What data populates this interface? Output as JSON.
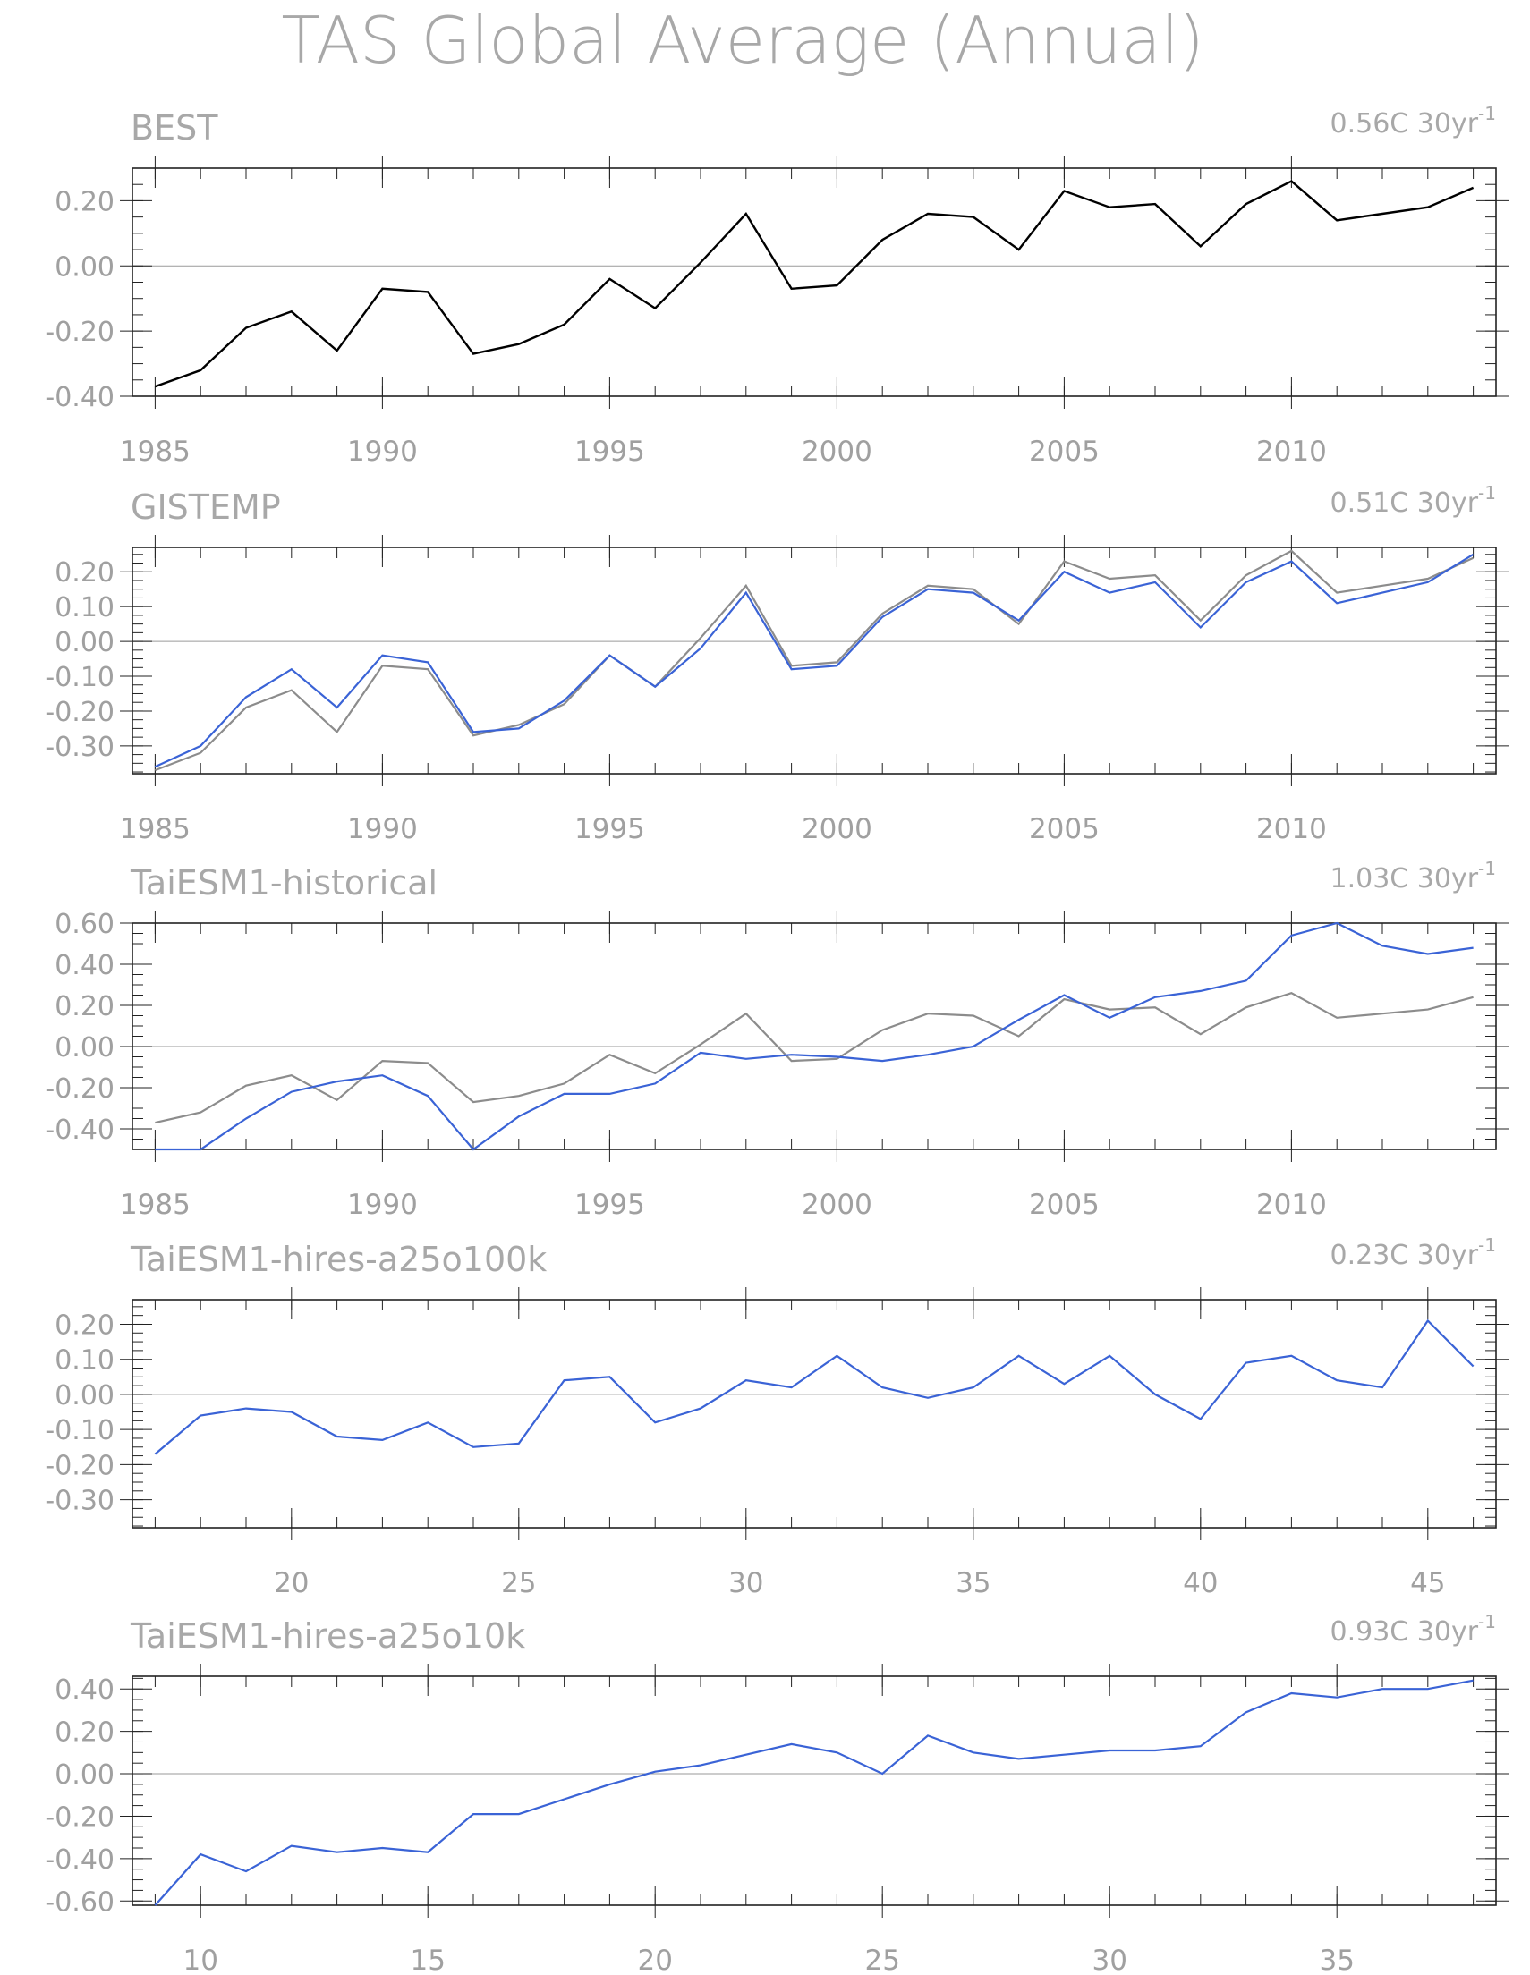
{
  "title": "TAS Global Average (Annual)",
  "colors": {
    "observed": "#000000",
    "reference": "#8c8c8c",
    "model": "#3a63d6",
    "frame": "#222222",
    "zero_line": "#9a9a9a",
    "text": "#a8a8a8"
  },
  "chart_data": [
    {
      "type": "line",
      "title": "BEST",
      "trend": {
        "value": "0.56C",
        "unit": "30yr",
        "exponent": "-1"
      },
      "xlim": [
        1984.5,
        2014.5
      ],
      "ylim": [
        -0.4,
        0.3
      ],
      "x_ticks": [
        1985,
        1990,
        1995,
        2000,
        2005,
        2010
      ],
      "y_ticks": [
        -0.4,
        -0.2,
        0.0,
        0.2
      ],
      "y_tick_labels": [
        "-0.40",
        "-0.20",
        "0.00",
        "0.20"
      ],
      "y_minor_step": 0.05,
      "x_minor_step": 1,
      "x": [
        1985,
        1986,
        1987,
        1988,
        1989,
        1990,
        1991,
        1992,
        1993,
        1994,
        1995,
        1996,
        1997,
        1998,
        1999,
        2000,
        2001,
        2002,
        2003,
        2004,
        2005,
        2006,
        2007,
        2008,
        2009,
        2010,
        2011,
        2012,
        2013,
        2014
      ],
      "series": [
        {
          "role": "observed",
          "values": [
            -0.37,
            -0.32,
            -0.19,
            -0.14,
            -0.26,
            -0.07,
            -0.08,
            -0.27,
            -0.24,
            -0.18,
            -0.04,
            -0.13,
            0.01,
            0.16,
            -0.07,
            -0.06,
            0.08,
            0.16,
            0.15,
            0.05,
            0.23,
            0.18,
            0.19,
            0.06,
            0.19,
            0.26,
            0.14,
            0.16,
            0.18,
            0.24
          ]
        }
      ]
    },
    {
      "type": "line",
      "title": "GISTEMP",
      "trend": {
        "value": "0.51C",
        "unit": "30yr",
        "exponent": "-1"
      },
      "xlim": [
        1984.5,
        2014.5
      ],
      "ylim": [
        -0.38,
        0.27
      ],
      "x_ticks": [
        1985,
        1990,
        1995,
        2000,
        2005,
        2010
      ],
      "y_ticks": [
        -0.3,
        -0.2,
        -0.1,
        0.0,
        0.1,
        0.2
      ],
      "y_tick_labels": [
        "-0.30",
        "-0.20",
        "-0.10",
        "0.00",
        "0.10",
        "0.20"
      ],
      "y_minor_step": 0.025,
      "x_minor_step": 1,
      "x": [
        1985,
        1986,
        1987,
        1988,
        1989,
        1990,
        1991,
        1992,
        1993,
        1994,
        1995,
        1996,
        1997,
        1998,
        1999,
        2000,
        2001,
        2002,
        2003,
        2004,
        2005,
        2006,
        2007,
        2008,
        2009,
        2010,
        2011,
        2012,
        2013,
        2014
      ],
      "series": [
        {
          "role": "reference",
          "values": [
            -0.37,
            -0.32,
            -0.19,
            -0.14,
            -0.26,
            -0.07,
            -0.08,
            -0.27,
            -0.24,
            -0.18,
            -0.04,
            -0.13,
            0.01,
            0.16,
            -0.07,
            -0.06,
            0.08,
            0.16,
            0.15,
            0.05,
            0.23,
            0.18,
            0.19,
            0.06,
            0.19,
            0.26,
            0.14,
            0.16,
            0.18,
            0.24
          ]
        },
        {
          "role": "model",
          "values": [
            -0.36,
            -0.3,
            -0.16,
            -0.08,
            -0.19,
            -0.04,
            -0.06,
            -0.26,
            -0.25,
            -0.17,
            -0.04,
            -0.13,
            -0.02,
            0.14,
            -0.08,
            -0.07,
            0.07,
            0.15,
            0.14,
            0.06,
            0.2,
            0.14,
            0.17,
            0.04,
            0.17,
            0.23,
            0.11,
            0.14,
            0.17,
            0.25
          ]
        }
      ]
    },
    {
      "type": "line",
      "title": "TaiESM1-historical",
      "trend": {
        "value": "1.03C",
        "unit": "30yr",
        "exponent": "-1"
      },
      "xlim": [
        1984.5,
        2014.5
      ],
      "ylim": [
        -0.5,
        0.6
      ],
      "x_ticks": [
        1985,
        1990,
        1995,
        2000,
        2005,
        2010
      ],
      "y_ticks": [
        -0.4,
        -0.2,
        0.0,
        0.2,
        0.4,
        0.6
      ],
      "y_tick_labels": [
        "-0.40",
        "-0.20",
        "0.00",
        "0.20",
        "0.40",
        "0.60"
      ],
      "y_minor_step": 0.05,
      "x_minor_step": 1,
      "x": [
        1985,
        1986,
        1987,
        1988,
        1989,
        1990,
        1991,
        1992,
        1993,
        1994,
        1995,
        1996,
        1997,
        1998,
        1999,
        2000,
        2001,
        2002,
        2003,
        2004,
        2005,
        2006,
        2007,
        2008,
        2009,
        2010,
        2011,
        2012,
        2013,
        2014
      ],
      "series": [
        {
          "role": "reference",
          "values": [
            -0.37,
            -0.32,
            -0.19,
            -0.14,
            -0.26,
            -0.07,
            -0.08,
            -0.27,
            -0.24,
            -0.18,
            -0.04,
            -0.13,
            0.01,
            0.16,
            -0.07,
            -0.06,
            0.08,
            0.16,
            0.15,
            0.05,
            0.23,
            0.18,
            0.19,
            0.06,
            0.19,
            0.26,
            0.14,
            0.16,
            0.18,
            0.24
          ]
        },
        {
          "role": "model",
          "values": [
            -0.5,
            -0.5,
            -0.35,
            -0.22,
            -0.17,
            -0.14,
            -0.24,
            -0.5,
            -0.34,
            -0.23,
            -0.23,
            -0.18,
            -0.03,
            -0.06,
            -0.04,
            -0.05,
            -0.07,
            -0.04,
            0.0,
            0.13,
            0.25,
            0.14,
            0.24,
            0.27,
            0.32,
            0.54,
            0.6,
            0.49,
            0.45,
            0.48
          ]
        }
      ]
    },
    {
      "type": "line",
      "title": "TaiESM1-hires-a25o100k",
      "trend": {
        "value": "0.23C",
        "unit": "30yr",
        "exponent": "-1"
      },
      "xlim": [
        16.5,
        46.5
      ],
      "ylim": [
        -0.38,
        0.27
      ],
      "x_ticks": [
        20,
        25,
        30,
        35,
        40,
        45
      ],
      "y_ticks": [
        -0.3,
        -0.2,
        -0.1,
        0.0,
        0.1,
        0.2
      ],
      "y_tick_labels": [
        "-0.30",
        "-0.20",
        "-0.10",
        "0.00",
        "0.10",
        "0.20"
      ],
      "y_minor_step": 0.025,
      "x_minor_step": 1,
      "x": [
        17,
        18,
        19,
        20,
        21,
        22,
        23,
        24,
        25,
        26,
        27,
        28,
        29,
        30,
        31,
        32,
        33,
        34,
        35,
        36,
        37,
        38,
        39,
        40,
        41,
        42,
        43,
        44,
        45,
        46
      ],
      "series": [
        {
          "role": "model",
          "values": [
            -0.17,
            -0.06,
            -0.04,
            -0.05,
            -0.12,
            -0.13,
            -0.08,
            -0.15,
            -0.14,
            0.04,
            0.05,
            -0.08,
            -0.04,
            0.04,
            0.02,
            0.11,
            0.02,
            -0.01,
            0.02,
            0.11,
            0.03,
            0.11,
            0.0,
            -0.07,
            0.09,
            0.11,
            0.04,
            0.02,
            0.21,
            0.08
          ]
        }
      ]
    },
    {
      "type": "line",
      "title": "TaiESM1-hires-a25o10k",
      "trend": {
        "value": "0.93C",
        "unit": "30yr",
        "exponent": "-1"
      },
      "xlim": [
        8.5,
        38.5
      ],
      "ylim": [
        -0.62,
        0.46
      ],
      "x_ticks": [
        10,
        15,
        20,
        25,
        30,
        35
      ],
      "y_ticks": [
        -0.6,
        -0.4,
        -0.2,
        0.0,
        0.2,
        0.4
      ],
      "y_tick_labels": [
        "-0.60",
        "-0.40",
        "-0.20",
        "0.00",
        "0.20",
        "0.40"
      ],
      "y_minor_step": 0.05,
      "x_minor_step": 1,
      "x": [
        9,
        10,
        11,
        12,
        13,
        14,
        15,
        16,
        17,
        18,
        19,
        20,
        21,
        22,
        23,
        24,
        25,
        26,
        27,
        28,
        29,
        30,
        31,
        32,
        33,
        34,
        35,
        36,
        37,
        38
      ],
      "series": [
        {
          "role": "model",
          "values": [
            -0.62,
            -0.38,
            -0.46,
            -0.34,
            -0.37,
            -0.35,
            -0.37,
            -0.19,
            -0.19,
            -0.12,
            -0.05,
            0.01,
            0.04,
            0.09,
            0.14,
            0.1,
            0.0,
            0.18,
            0.1,
            0.07,
            0.09,
            0.11,
            0.11,
            0.13,
            0.29,
            0.38,
            0.36,
            0.4,
            0.4,
            0.44
          ]
        }
      ]
    }
  ]
}
